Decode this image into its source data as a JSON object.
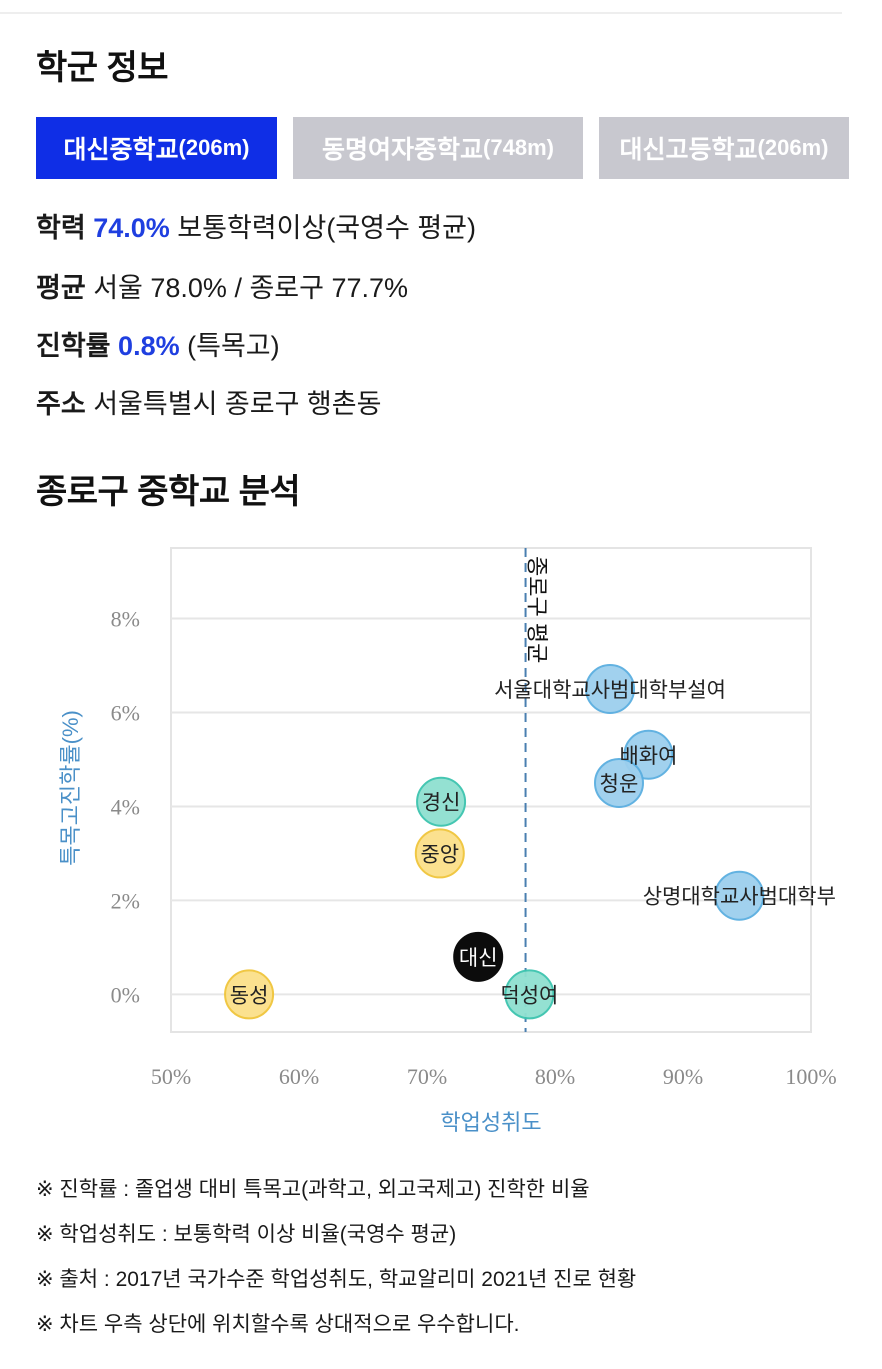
{
  "school_info": {
    "title": "학군 정보",
    "tabs": [
      {
        "name": "대신중학교",
        "distance": "(206m)",
        "active": true
      },
      {
        "name": "동명여자중학교",
        "distance": "(748m)",
        "active": false
      },
      {
        "name": "대신고등학교",
        "distance": "(206m)",
        "active": false
      }
    ],
    "academic": {
      "label": "학력",
      "value": "74.0%",
      "desc": "보통학력이상(국영수 평균)"
    },
    "average": {
      "label": "평균",
      "text": "서울 78.0% / 종로구 77.7%"
    },
    "advance": {
      "label": "진학률",
      "value": "0.8%",
      "desc": "(특목고)"
    },
    "address": {
      "label": "주소",
      "text": "서울특별시 종로구 행촌동"
    }
  },
  "analysis": {
    "title": "종로구 중학교 분석"
  },
  "colors": {
    "accent": "#1f3fe0",
    "tab_active": "#0f2ee6",
    "tab_inactive": "#c8c8cf",
    "axis_label": "#4a90c8",
    "blue_bubble": "#9ccfee",
    "blue_stroke": "#5aaee0",
    "teal_bubble": "#8fe0d0",
    "teal_stroke": "#3cc4ae",
    "yellow_bubble": "#fbe08a",
    "yellow_stroke": "#f0c53a",
    "current_bubble": "#000000"
  },
  "chart_data": {
    "type": "scatter",
    "xlabel": "학업성취도",
    "ylabel": "특목고진학률(%)",
    "xlim": [
      50,
      100
    ],
    "ylim": [
      -0.8,
      9.5
    ],
    "x_ticks": [
      "50%",
      "60%",
      "70%",
      "80%",
      "90%",
      "100%"
    ],
    "x_tick_values": [
      50,
      60,
      70,
      80,
      90,
      100
    ],
    "y_ticks": [
      "0%",
      "2%",
      "4%",
      "6%",
      "8%"
    ],
    "y_tick_values": [
      0,
      2,
      4,
      6,
      8
    ],
    "grid": true,
    "reference_line": {
      "x": 77.7,
      "label": "종로구 평균"
    },
    "points": [
      {
        "label": "서울대학교사범대학부설여",
        "x": 84.3,
        "y": 6.5,
        "color": "blue"
      },
      {
        "label": "배화여",
        "x": 87.3,
        "y": 5.1,
        "color": "blue"
      },
      {
        "label": "청운",
        "x": 85.0,
        "y": 4.5,
        "color": "blue"
      },
      {
        "label": "상명대학교사범대학부",
        "x": 94.4,
        "y": 2.1,
        "color": "blue"
      },
      {
        "label": "경신",
        "x": 71.1,
        "y": 4.1,
        "color": "teal"
      },
      {
        "label": "중앙",
        "x": 71.0,
        "y": 3.0,
        "color": "yellow"
      },
      {
        "label": "대신",
        "x": 74.0,
        "y": 0.8,
        "color": "black"
      },
      {
        "label": "덕성여",
        "x": 78.0,
        "y": 0.0,
        "color": "teal"
      },
      {
        "label": "동성",
        "x": 56.1,
        "y": 0.0,
        "color": "yellow"
      }
    ]
  },
  "notes": [
    "※ 진학률 : 졸업생 대비 특목고(과학고, 외고국제고) 진학한 비율",
    "※ 학업성취도 : 보통학력 이상 비율(국영수 평균)",
    "※ 출처 : 2017년 국가수준 학업성취도, 학교알리미 2021년 진로 현황",
    "※ 차트 우측 상단에 위치할수록 상대적으로 우수합니다."
  ]
}
